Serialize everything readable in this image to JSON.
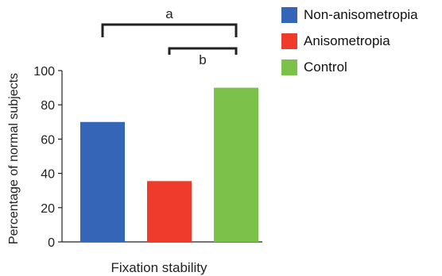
{
  "chart_data": {
    "type": "bar",
    "categories": [
      "Fixation stability"
    ],
    "series": [
      {
        "name": "Non-anisometropia",
        "values": [
          70
        ],
        "color": "#3565b7"
      },
      {
        "name": "Anisometropia",
        "values": [
          35.5
        ],
        "color": "#ee3b2c"
      },
      {
        "name": "Control",
        "values": [
          90
        ],
        "color": "#7cc24a"
      }
    ],
    "xlabel": "Fixation stability",
    "ylabel": "Percentage of normal subjects",
    "ylim": [
      0,
      100
    ],
    "yticks": [
      0,
      20,
      40,
      60,
      80,
      100
    ],
    "legend_position": "top-right",
    "grid": false,
    "significance": [
      {
        "label": "a",
        "from_series": "Non-anisometropia",
        "to_series": "Control"
      },
      {
        "label": "b",
        "from_series": "Anisometropia",
        "to_series": "Control"
      }
    ]
  }
}
